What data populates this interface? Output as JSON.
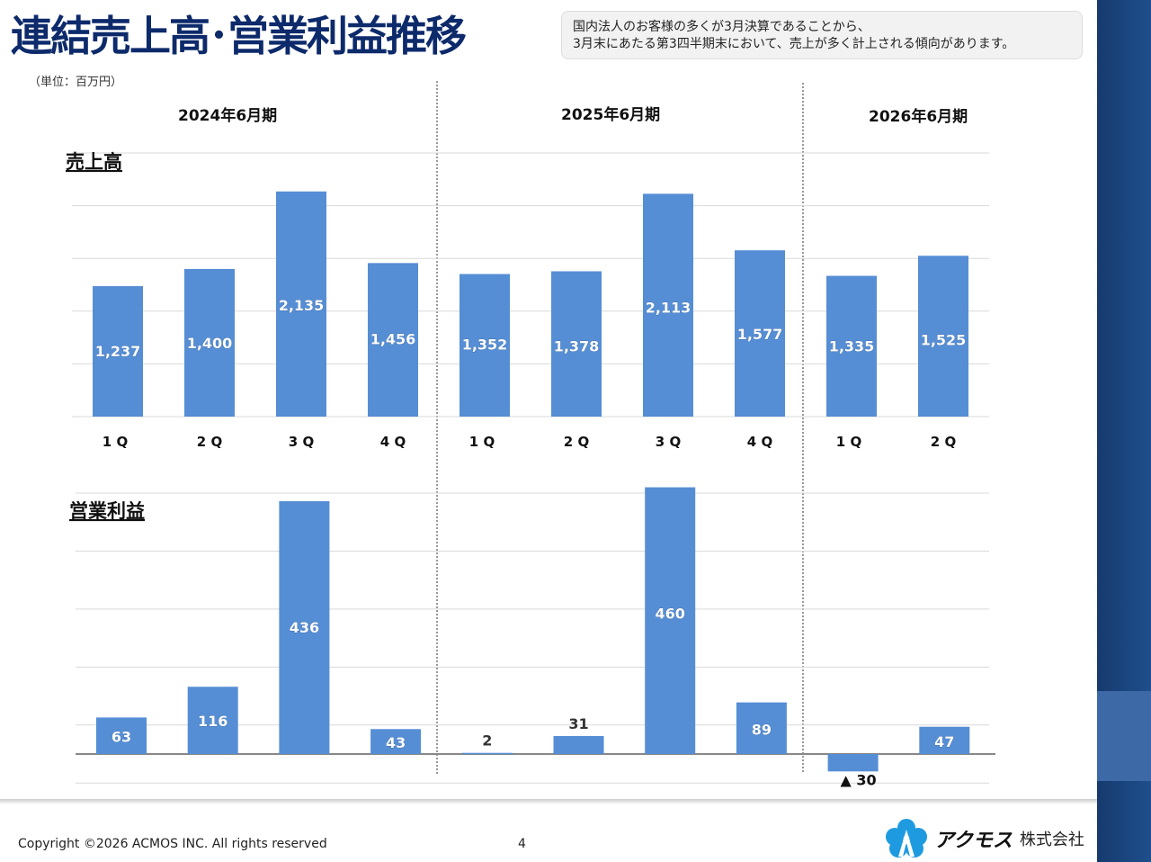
{
  "title": "連結売上高･営業利益推移",
  "note": [
    "国内法人のお客様の多くが3月決算であることから、",
    "3月末にあたる第3四半期末において、売上が多く計上される傾向があります。"
  ],
  "unit": "（単位：百万円）",
  "periods": [
    "2024年6月期",
    "2025年6月期",
    "2026年6月期"
  ],
  "footer": {
    "copyright": "Copyright ©2026 ACMOS INC. All rights reserved",
    "page": "4",
    "logo_text": "アクモス",
    "logo_suffix": "株式会社"
  },
  "colors": {
    "bar": "#558ed5",
    "title": "#0d2a6b",
    "sidebar": "#1a4580"
  },
  "chart_data": [
    {
      "type": "bar",
      "title": "売上高",
      "categories": [
        "1Q",
        "2Q",
        "3Q",
        "4Q",
        "1Q",
        "2Q",
        "3Q",
        "4Q",
        "1Q",
        "2Q"
      ],
      "values": [
        1237,
        1400,
        2135,
        1456,
        1352,
        1378,
        2113,
        1577,
        1335,
        1525
      ],
      "labels": [
        "1,237",
        "1,400",
        "2,135",
        "1,456",
        "1,352",
        "1,378",
        "2,113",
        "1,577",
        "1,335",
        "1,525"
      ],
      "ylim": [
        0,
        2500
      ],
      "grid": true
    },
    {
      "type": "bar",
      "title": "営業利益",
      "categories": [
        "1Q",
        "2Q",
        "3Q",
        "4Q",
        "1Q",
        "2Q",
        "3Q",
        "4Q",
        "1Q",
        "2Q"
      ],
      "values": [
        63,
        116,
        436,
        43,
        2,
        31,
        460,
        89,
        -30,
        47
      ],
      "labels": [
        "63",
        "116",
        "436",
        "43",
        "2",
        "31",
        "460",
        "89",
        "▲ 30",
        "47"
      ],
      "ylim": [
        -50,
        450
      ],
      "grid": true
    }
  ]
}
